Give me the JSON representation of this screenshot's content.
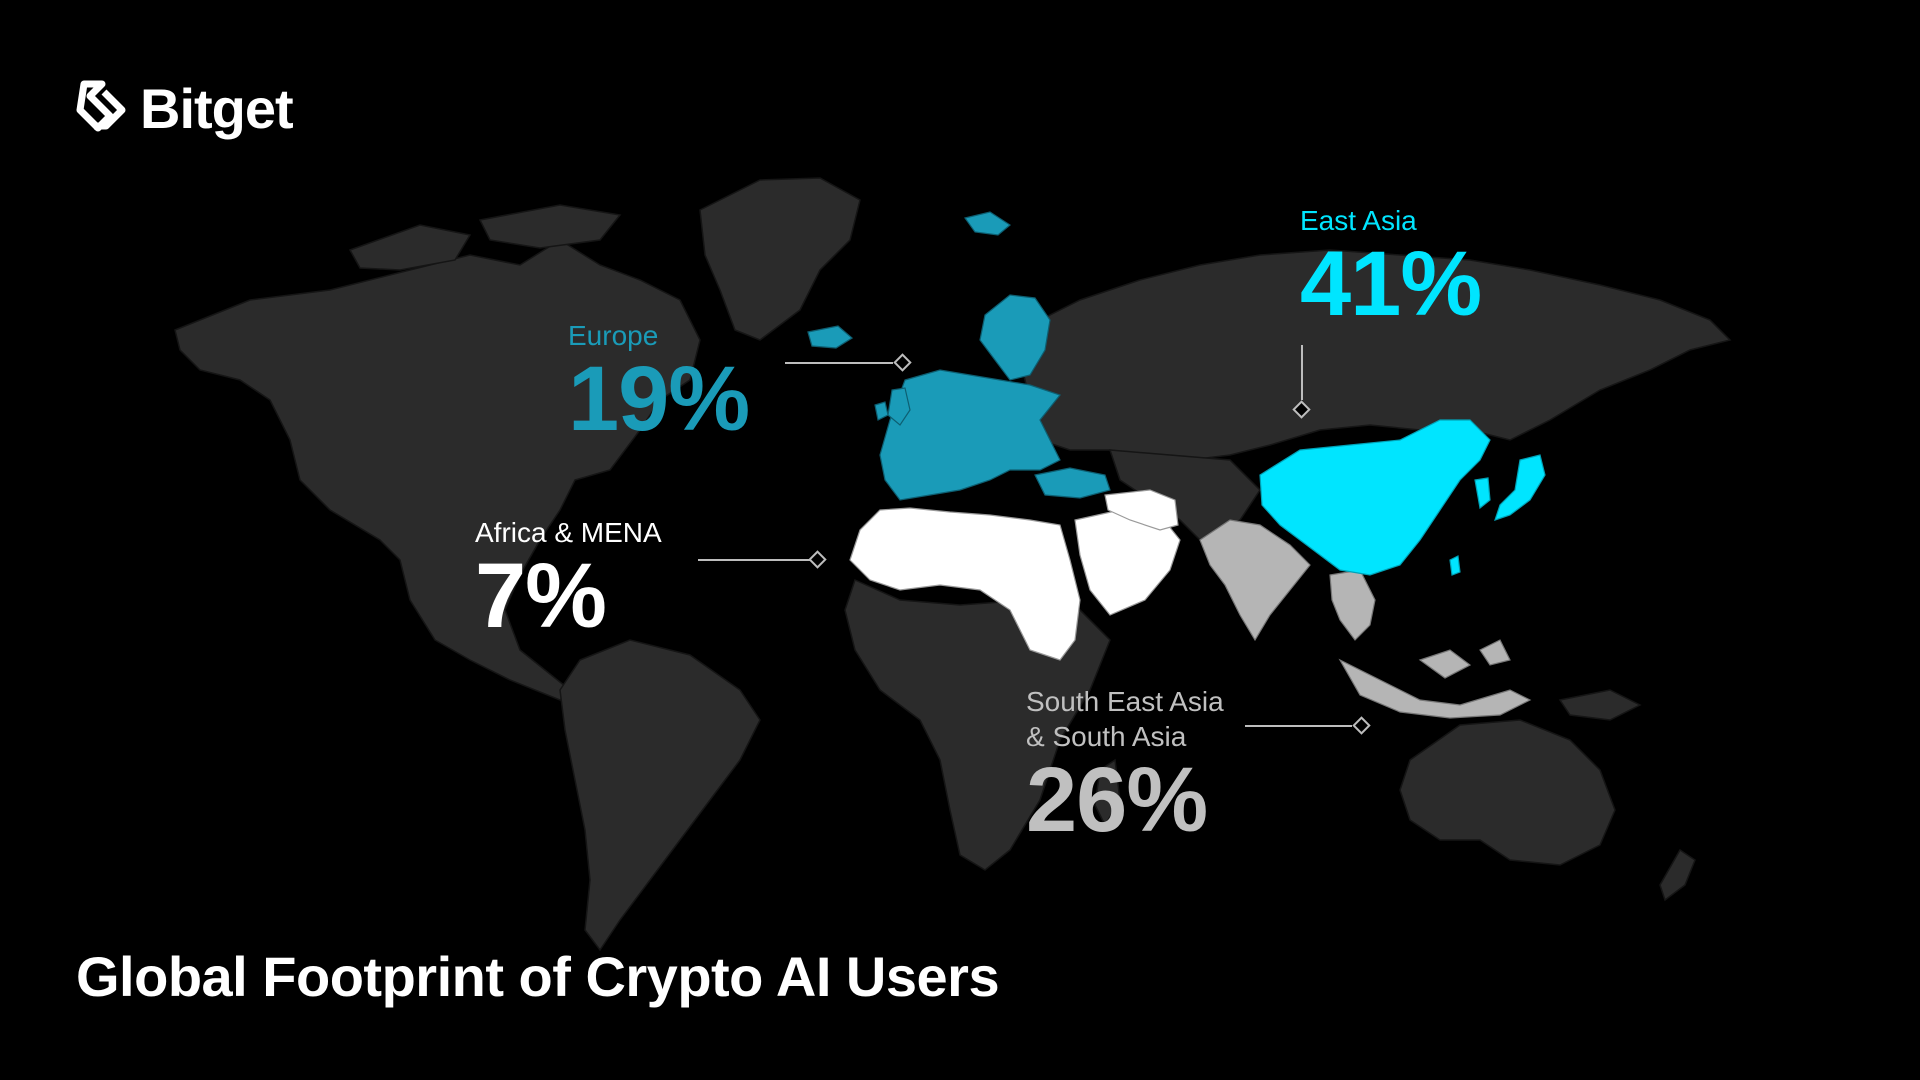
{
  "brand": {
    "name": "Bitget"
  },
  "title": "Global Footprint of Crypto AI Users",
  "colors": {
    "background": "#000000",
    "land": "#2b2b2b",
    "europe": "#1a9bb8",
    "east_asia": "#00e5ff",
    "africa_mena": "#ffffff",
    "south_asia": "#b5b5b5",
    "connector": "#bdbdbd"
  },
  "regions": {
    "europe": {
      "name": "Europe",
      "value": "19%",
      "color": "#1a9bb8"
    },
    "east_asia": {
      "name": "East Asia",
      "value": "41%",
      "color": "#00e5ff"
    },
    "africa_mena": {
      "name": "Africa & MENA",
      "value": "7%",
      "color": "#ffffff"
    },
    "south_asia": {
      "name_line1": "South East Asia",
      "name_line2": "& South Asia",
      "value": "26%",
      "color": "#c0c0c0"
    }
  }
}
